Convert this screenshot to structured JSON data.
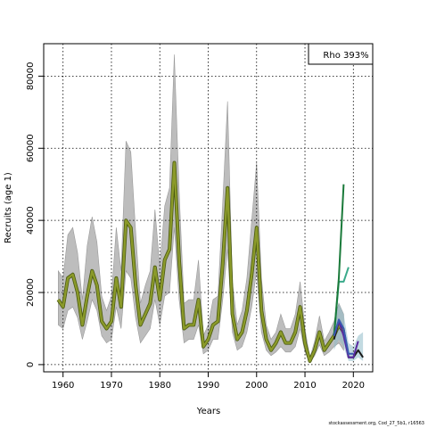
{
  "chart_data": {
    "type": "line",
    "xlabel": "Years",
    "ylabel": "Recruits (age 1)",
    "xlim": [
      1956,
      2024
    ],
    "ylim": [
      -2000,
      89000
    ],
    "x_ticks": [
      1960,
      1970,
      1980,
      1990,
      2000,
      2010,
      2020
    ],
    "y_ticks": [
      0,
      20000,
      40000,
      60000,
      80000
    ],
    "grid": true,
    "legend": {
      "position": "top-right",
      "text": "Rho 393%"
    },
    "base_series": {
      "x": [
        1959,
        1960,
        1961,
        1962,
        1963,
        1964,
        1965,
        1966,
        1967,
        1968,
        1969,
        1970,
        1971,
        1972,
        1973,
        1974,
        1975,
        1976,
        1977,
        1978,
        1979,
        1980,
        1981,
        1982,
        1983,
        1984,
        1985,
        1986,
        1987,
        1988,
        1989,
        1990,
        1991,
        1992,
        1993,
        1994,
        1995,
        1996,
        1997,
        1998,
        1999,
        2000,
        2001,
        2002,
        2003,
        2004,
        2005,
        2006,
        2007,
        2008,
        2009,
        2010,
        2011,
        2012,
        2013,
        2014,
        2015,
        2016,
        2017,
        2018
      ],
      "y": [
        18000,
        16000,
        24000,
        25000,
        20000,
        11000,
        19000,
        26000,
        22000,
        12000,
        10000,
        12000,
        24000,
        16000,
        40000,
        38000,
        22000,
        11000,
        14000,
        17000,
        27000,
        18000,
        29000,
        32000,
        56000,
        29000,
        10000,
        11000,
        11000,
        18000,
        5000,
        7000,
        11000,
        12000,
        28000,
        49000,
        14000,
        7000,
        9000,
        15000,
        25000,
        38000,
        15000,
        7000,
        4000,
        6000,
        9000,
        6000,
        6000,
        9000,
        16000,
        6000,
        1000,
        4000,
        9000,
        4000,
        6000,
        8000,
        11000,
        9000
      ],
      "lower": [
        11000,
        10000,
        15000,
        16000,
        13000,
        7000,
        12000,
        18000,
        15000,
        8000,
        6000,
        7000,
        16000,
        10000,
        26000,
        24000,
        13000,
        6000,
        8000,
        10000,
        18000,
        11000,
        19000,
        20000,
        38000,
        18000,
        6000,
        7000,
        7000,
        11000,
        3000,
        4000,
        7000,
        7000,
        18000,
        32000,
        9000,
        4000,
        5000,
        9000,
        16000,
        26000,
        9000,
        4000,
        2500,
        3500,
        5000,
        3500,
        3500,
        5000,
        10000,
        3500,
        500,
        2500,
        5500,
        2500,
        3500,
        5000,
        6000,
        4000
      ],
      "upper": [
        26000,
        24000,
        36000,
        38000,
        31000,
        18000,
        33000,
        41000,
        34000,
        19000,
        15000,
        19000,
        38000,
        26000,
        62000,
        59000,
        37000,
        17000,
        22000,
        26000,
        43000,
        27000,
        44000,
        49000,
        86000,
        48000,
        17000,
        18000,
        18000,
        29000,
        8000,
        11000,
        18000,
        19000,
        45000,
        73000,
        23000,
        11000,
        15000,
        24000,
        40000,
        56000,
        24000,
        11000,
        7000,
        9000,
        14000,
        10000,
        10000,
        14000,
        23000,
        10000,
        1800,
        6500,
        13500,
        6500,
        9000,
        12000,
        17000,
        14000
      ],
      "color": "#8b9a2a"
    },
    "peels": [
      {
        "x": [
          2016,
          2017,
          2018,
          2019
        ],
        "y": [
          8000,
          23000,
          23000,
          27000
        ],
        "color": "#3aaa8a"
      },
      {
        "x": [
          2016,
          2017,
          2018
        ],
        "y": [
          8000,
          24000,
          50000
        ],
        "color": "#1a7a3a"
      },
      {
        "x": [
          2016,
          2017,
          2018,
          2019,
          2020,
          2021,
          2022
        ],
        "y": [
          7000,
          12000,
          10000,
          2000,
          2000,
          4000,
          2000
        ],
        "color": "#1a1a1a"
      },
      {
        "x": [
          2016,
          2017,
          2018,
          2019,
          2020,
          2021
        ],
        "y": [
          8000,
          12000,
          8000,
          2000,
          2000,
          6500
        ],
        "color": "#5a2aa0"
      },
      {
        "x": [
          2016,
          2017,
          2018,
          2019,
          2020
        ],
        "y": [
          8000,
          12500,
          10000,
          3000,
          3000
        ],
        "color": "#3a5ab0"
      }
    ],
    "peel_band": {
      "x": [
        2016,
        2017,
        2018,
        2019,
        2020,
        2021,
        2022
      ],
      "lower": [
        4000,
        7000,
        5000,
        1000,
        1000,
        2000,
        1000
      ],
      "upper": [
        11000,
        17000,
        14000,
        6000,
        5000,
        8000,
        9000
      ],
      "color": "#8fbcc8"
    }
  },
  "footer": "stockassessment.org, Cod_27_5b1, r16563"
}
